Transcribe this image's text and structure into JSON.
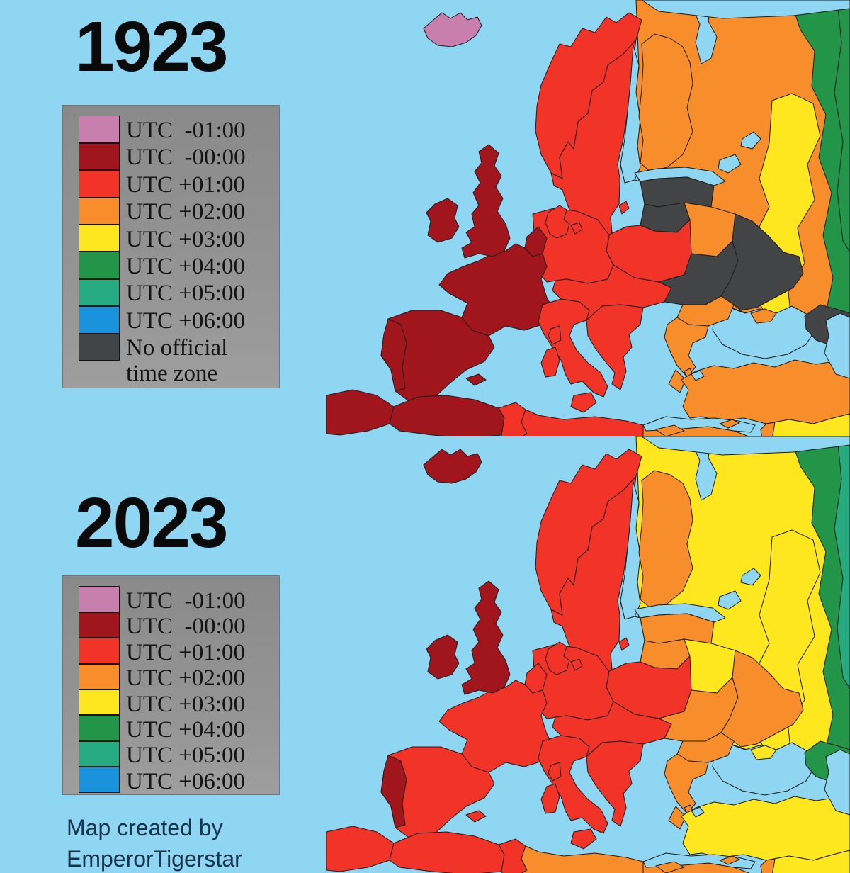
{
  "page": {
    "background": "#8fd6f2"
  },
  "palette": {
    "m1": "#c97fae",
    "z0": "#a0161c",
    "p1": "#f23327",
    "p2": "#f78d2b",
    "p3": "#ffe71f",
    "p4": "#239549",
    "p5": "#26aa80",
    "p6": "#1b92dc",
    "none": "#424446",
    "sea": "#8fd6f2"
  },
  "legend_labels": {
    "m1": "UTC  -01:00",
    "z0": "UTC  -00:00",
    "p1": "UTC +01:00",
    "p2": "UTC +02:00",
    "p3": "UTC +03:00",
    "p4": "UTC +04:00",
    "p5": "UTC +05:00",
    "p6": "UTC +06:00",
    "none": "No official\ntime zone"
  },
  "credit": {
    "line1": "Map created by",
    "line2": "EmperorTigerstar"
  },
  "sections": [
    {
      "year": "1923",
      "legend_keys": [
        "m1",
        "z0",
        "p1",
        "p2",
        "p3",
        "p4",
        "p5",
        "p6",
        "none"
      ],
      "regions": {
        "sea": "sea",
        "russia_base": "p2",
        "russia_yellow": "p3",
        "russia_green": "p4",
        "russia_teal": "p4",
        "norway": "p1",
        "sweden": "p1",
        "gotland": "p1",
        "denmark": "p1",
        "finland": "p2",
        "estonia_latvia": "none",
        "lithuania": "none",
        "belarus": "p2",
        "poland": "p1",
        "germany": "p1",
        "benelux": "z0",
        "france": "z0",
        "spain": "z0",
        "portugal": "z0",
        "balearics": "z0",
        "uk": "z0",
        "ireland": "z0",
        "iceland": "m1",
        "central": "p1",
        "italy": "p1",
        "west_balkans": "p1",
        "romania": "none",
        "bulgaria": "p2",
        "greece": "p2",
        "ukraine": "none",
        "crimea": "p2",
        "turkey": "p2",
        "caucasus": "none",
        "morocco": "z0",
        "algeria": "z0",
        "tunisia": "p1",
        "libya": "p1",
        "egypt": "p2",
        "mideast": "p3",
        "levant": "p2",
        "cyprus": "p2"
      }
    },
    {
      "year": "2023",
      "legend_keys": [
        "m1",
        "z0",
        "p1",
        "p2",
        "p3",
        "p4",
        "p5",
        "p6"
      ],
      "regions": {
        "sea": "sea",
        "russia_base": "p3",
        "russia_yellow": "p3",
        "russia_green": "p4",
        "russia_teal": "p5",
        "norway": "p1",
        "sweden": "p1",
        "gotland": "p1",
        "denmark": "p1",
        "finland": "p2",
        "estonia_latvia": "p2",
        "lithuania": "p2",
        "belarus": "p3",
        "poland": "p1",
        "germany": "p1",
        "benelux": "p1",
        "france": "p1",
        "spain": "p1",
        "portugal": "z0",
        "balearics": "p1",
        "uk": "z0",
        "ireland": "z0",
        "iceland": "z0",
        "central": "p1",
        "italy": "p1",
        "west_balkans": "p1",
        "romania": "p2",
        "bulgaria": "p2",
        "greece": "p2",
        "ukraine": "p2",
        "crimea": "p3",
        "turkey": "p3",
        "caucasus": "p4",
        "morocco": "p1",
        "algeria": "p1",
        "tunisia": "p1",
        "libya": "p2",
        "egypt": "p2",
        "mideast": "p3",
        "levant": "p2",
        "cyprus": "p2"
      }
    }
  ]
}
